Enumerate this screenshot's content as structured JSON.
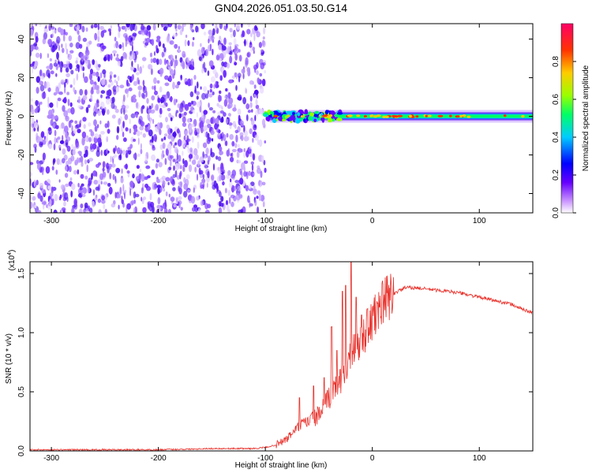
{
  "title": "GN04.2026.051.03.50.G14",
  "chart_data": [
    {
      "type": "heatmap",
      "title": "GN04.2026.051.03.50.G14",
      "xlabel": "Height of straight line (km)",
      "ylabel": "Frequency (Hz)",
      "xlim": [
        -320,
        150
      ],
      "ylim": [
        -50,
        48
      ],
      "x_ticks": [
        "-300",
        "-200",
        "-100",
        "0",
        "100"
      ],
      "y_ticks": [
        "40",
        "20",
        "0",
        "-20",
        "-40"
      ],
      "colorbar": {
        "label": "Normalized spectral amplitude",
        "range": [
          0.0,
          1.0
        ],
        "ticks": [
          "0.0",
          "0.2",
          "0.4",
          "0.6",
          "0.8"
        ],
        "colors": [
          "#ffffff",
          "#cc99ff",
          "#6600ff",
          "#0000ff",
          "#00ccff",
          "#00ff66",
          "#99ff00",
          "#ffcc00",
          "#ff3300",
          "#ff0066"
        ]
      },
      "regions": [
        {
          "name": "noise",
          "x_range": [
            -320,
            -100
          ],
          "freq_range": [
            -50,
            48
          ],
          "amplitude": 0.15
        },
        {
          "name": "signal",
          "x_range": [
            -100,
            150
          ],
          "frequency": 0,
          "amplitude": 0.9
        }
      ]
    },
    {
      "type": "line",
      "xlabel": "Height of straight line (km)",
      "ylabel": "SNR (10 * v/v)",
      "y_multiplier": "(x10",
      "y_multiplier_exp": "4",
      "xlim": [
        -320,
        150
      ],
      "ylim": [
        0.0,
        1.6
      ],
      "x_ticks": [
        "-300",
        "-200",
        "-100",
        "0",
        "100"
      ],
      "y_ticks": [
        "0.0",
        "0.5",
        "1.0",
        "1.5"
      ],
      "color": "#e8302a",
      "series": [
        {
          "x": [
            -320,
            -300,
            -250,
            -200,
            -150,
            -110,
            -100,
            -90,
            -80,
            -70,
            -60,
            -50,
            -40,
            -30,
            -20,
            -10,
            0,
            10,
            20,
            30,
            40,
            50,
            60,
            70,
            80,
            90,
            100,
            110,
            120,
            130,
            140,
            150
          ],
          "values": [
            0.01,
            0.01,
            0.01,
            0.01,
            0.02,
            0.02,
            0.03,
            0.05,
            0.1,
            0.2,
            0.25,
            0.3,
            0.45,
            0.6,
            0.8,
            0.95,
            1.1,
            1.25,
            1.33,
            1.38,
            1.38,
            1.37,
            1.36,
            1.35,
            1.34,
            1.32,
            1.3,
            1.28,
            1.26,
            1.24,
            1.2,
            1.17
          ],
          "spikes": [
            {
              "x": -68,
              "value": 0.45
            },
            {
              "x": -55,
              "value": 0.55
            },
            {
              "x": -45,
              "value": 0.62
            },
            {
              "x": -38,
              "value": 1.05
            },
            {
              "x": -33,
              "value": 0.85
            },
            {
              "x": -28,
              "value": 1.35
            },
            {
              "x": -25,
              "value": 1.4
            },
            {
              "x": -20,
              "value": 1.6
            },
            {
              "x": -15,
              "value": 1.3
            },
            {
              "x": -10,
              "value": 1.15
            },
            {
              "x": -5,
              "value": 1.2
            },
            {
              "x": 5,
              "value": 1.25
            }
          ]
        }
      ]
    }
  ]
}
